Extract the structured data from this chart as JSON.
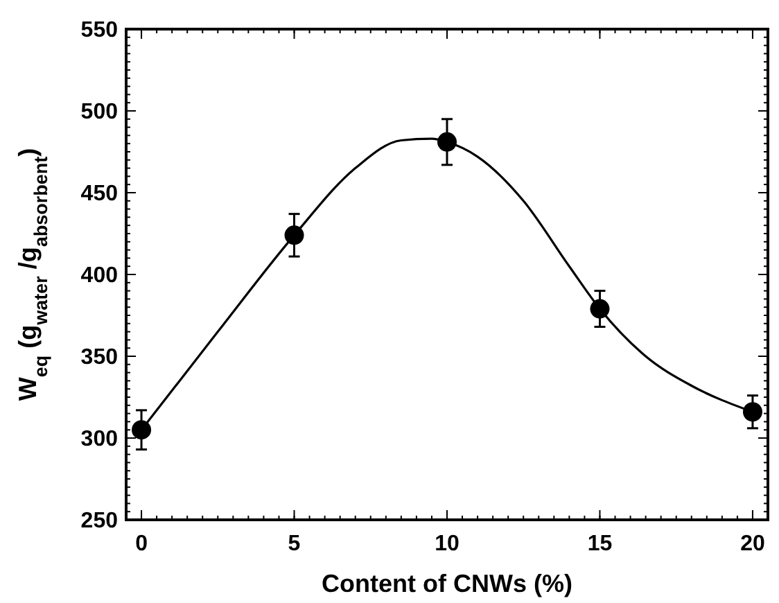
{
  "chart_data": {
    "type": "scatter",
    "xlabel": "Content of CNWs (%)",
    "ylabel": "W$_{eq}$ (g$_{water}$ /g$_{absorbent}$)",
    "xlim": [
      -0.5,
      20.5
    ],
    "xticks": [
      0,
      5,
      10,
      15,
      20
    ],
    "ylim": [
      250,
      550
    ],
    "yticks": [
      250,
      300,
      350,
      400,
      450,
      500,
      550
    ],
    "series": [
      {
        "type": "line",
        "color": "#000000",
        "marker": "none",
        "x": [
          0,
          2.5,
          5,
          7,
          8.5,
          9.5,
          10,
          11,
          12.5,
          14,
          15,
          16.5,
          18,
          20
        ],
        "values": [
          305,
          365,
          424,
          465,
          482,
          483,
          481,
          472,
          445,
          405,
          379,
          350,
          332,
          316
        ]
      },
      {
        "color": "#000000",
        "marker": "circle",
        "x": [
          0,
          5,
          10,
          15,
          20
        ],
        "values": [
          305,
          424,
          481,
          379,
          316
        ],
        "errors": [
          12,
          13,
          14,
          11,
          10
        ]
      }
    ]
  }
}
